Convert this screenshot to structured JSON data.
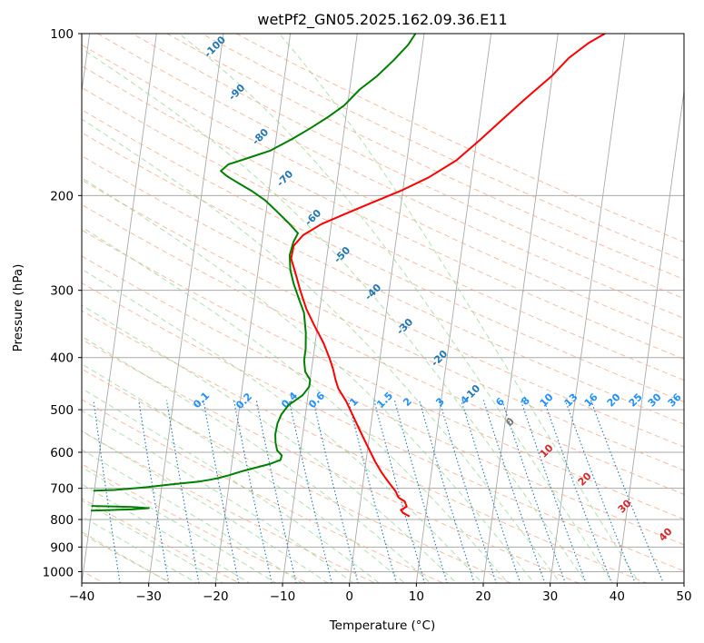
{
  "title": "wetPf2_GN05.2025.162.09.36.E11",
  "chart_data": {
    "type": "line",
    "diagram": "skew-T log-P",
    "title": "wetPf2_GN05.2025.162.09.36.E11",
    "xlabel": "Temperature (°C)",
    "ylabel": "Pressure (hPa)",
    "xlim": [
      -40,
      50
    ],
    "ylim": [
      1050,
      100
    ],
    "y_scale": "log",
    "x_ticks": [
      "−40",
      "−30",
      "−20",
      "−10",
      "0",
      "10",
      "20",
      "30",
      "40",
      "50"
    ],
    "y_ticks": [
      "100",
      "200",
      "300",
      "400",
      "500",
      "600",
      "700",
      "800",
      "900",
      "1000"
    ],
    "grid": true,
    "series": [
      {
        "label": "temperature",
        "color": "#ff0000",
        "points": [
          [
            7.5,
            788
          ],
          [
            6.6,
            778
          ],
          [
            6.2,
            768
          ],
          [
            7.0,
            757
          ],
          [
            6.6,
            740
          ],
          [
            5.6,
            728
          ],
          [
            5.0,
            708
          ],
          [
            3.8,
            682
          ],
          [
            2.6,
            655
          ],
          [
            1.4,
            625
          ],
          [
            0.2,
            592
          ],
          [
            -1.2,
            555
          ],
          [
            -2.8,
            515
          ],
          [
            -4.2,
            482
          ],
          [
            -5.6,
            457
          ],
          [
            -6.2,
            440
          ],
          [
            -6.8,
            420
          ],
          [
            -7.6,
            400
          ],
          [
            -8.8,
            375
          ],
          [
            -10.4,
            350
          ],
          [
            -12.0,
            325
          ],
          [
            -13.3,
            300
          ],
          [
            -14.4,
            278
          ],
          [
            -15.3,
            262
          ],
          [
            -15.2,
            248
          ],
          [
            -14.0,
            237
          ],
          [
            -11.5,
            226
          ],
          [
            -8.0,
            216
          ],
          [
            -4.3,
            206
          ],
          [
            -0.3,
            196
          ],
          [
            3.6,
            185
          ],
          [
            7.4,
            172
          ],
          [
            10.4,
            158
          ],
          [
            13.3,
            145
          ],
          [
            16.5,
            132
          ],
          [
            19.9,
            120
          ],
          [
            22.1,
            111
          ],
          [
            24.8,
            104
          ],
          [
            27.0,
            100
          ]
        ]
      },
      {
        "label": "dewpoint",
        "color": "#008000",
        "points": [
          [
            -40.0,
            707
          ],
          [
            -37.0,
            705
          ],
          [
            -32.5,
            697
          ],
          [
            -28.5,
            688
          ],
          [
            -24.5,
            680
          ],
          [
            -23.0,
            675
          ],
          [
            -21.7,
            670
          ],
          [
            -20.2,
            662
          ],
          [
            -18.2,
            650
          ],
          [
            -16.2,
            640
          ],
          [
            -14.2,
            630
          ],
          [
            -12.8,
            620
          ],
          [
            -12.7,
            608
          ],
          [
            -13.5,
            595
          ],
          [
            -13.9,
            575
          ],
          [
            -14.1,
            555
          ],
          [
            -14.0,
            530
          ],
          [
            -13.6,
            510
          ],
          [
            -12.7,
            490
          ],
          [
            -10.8,
            470
          ],
          [
            -10.0,
            453
          ],
          [
            -10.0,
            440
          ],
          [
            -10.9,
            425
          ],
          [
            -11.3,
            405
          ],
          [
            -11.3,
            385
          ],
          [
            -11.6,
            360
          ],
          [
            -12.3,
            330
          ],
          [
            -13.4,
            310
          ],
          [
            -14.4,
            292
          ],
          [
            -15.2,
            275
          ],
          [
            -15.6,
            258
          ],
          [
            -15.3,
            244
          ],
          [
            -14.8,
            235
          ],
          [
            -16.4,
            225
          ],
          [
            -18.4,
            214
          ],
          [
            -20.4,
            204
          ],
          [
            -22.6,
            196
          ],
          [
            -24.6,
            190
          ],
          [
            -26.6,
            184
          ],
          [
            -27.6,
            180
          ],
          [
            -26.6,
            175
          ],
          [
            -23.6,
            170
          ],
          [
            -20.6,
            165
          ],
          [
            -17.6,
            157
          ],
          [
            -15.1,
            150
          ],
          [
            -12.7,
            143
          ],
          [
            -10.5,
            136
          ],
          [
            -8.5,
            127
          ],
          [
            -6.2,
            120
          ],
          [
            -4.0,
            112
          ],
          [
            -2.2,
            105
          ],
          [
            -1.3,
            100
          ]
        ]
      },
      {
        "label": "dewpoint-spike",
        "color": "#008000",
        "points": [
          [
            -40.0,
            755
          ],
          [
            -34.0,
            758
          ],
          [
            -31.5,
            762
          ],
          [
            -34.0,
            766
          ],
          [
            -40.0,
            770
          ]
        ]
      }
    ],
    "moist_adiabat_labels": [
      "-100",
      "-90",
      "-80",
      "-70",
      "-60",
      "-50",
      "-40",
      "-30",
      "-20",
      "-10"
    ],
    "mixing_ratio_labels": [
      "0.1",
      "0.2",
      "0.4",
      "0.6",
      "1",
      "1.5",
      "2",
      "3",
      "4",
      "6",
      "8",
      "10",
      "13",
      "16",
      "20",
      "25",
      "30",
      "36"
    ],
    "dry_adiabat_labels": [
      "0",
      "10",
      "20",
      "30",
      "40"
    ],
    "colors": {
      "isotherm": "#aaaaaa",
      "dry_adiabat": "#f4a582",
      "moist_adiabat": "#8fd18f",
      "mixing_ratio": "#1f77b4",
      "moist_label": "#1f77b4",
      "mixing_label": "#1e90ff",
      "dry_label": "#d62728"
    }
  }
}
